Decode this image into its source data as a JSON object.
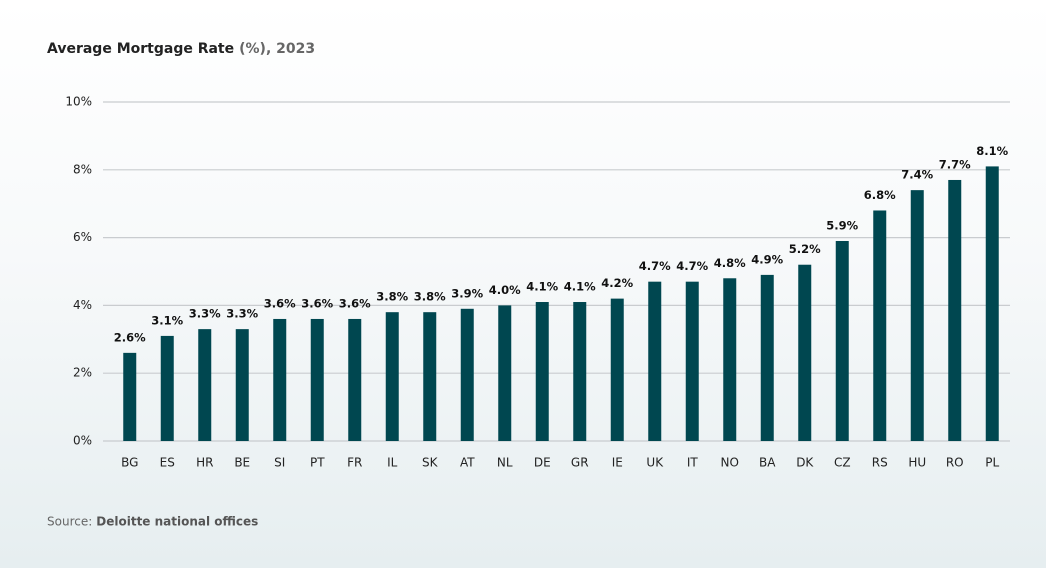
{
  "chart_data": {
    "type": "bar",
    "title": "Average Mortgage Rate",
    "title_note": "(%), 2023",
    "source_label": "Source:",
    "source": "Deloitte national offices",
    "categories": [
      "BG",
      "ES",
      "HR",
      "BE",
      "SI",
      "PT",
      "FR",
      "IL",
      "SK",
      "AT",
      "NL",
      "DE",
      "GR",
      "IE",
      "UK",
      "IT",
      "NO",
      "BA",
      "DK",
      "CZ",
      "RS",
      "HU",
      "RO",
      "PL"
    ],
    "values": [
      2.6,
      3.1,
      3.3,
      3.3,
      3.6,
      3.6,
      3.6,
      3.8,
      3.8,
      3.9,
      4.0,
      4.1,
      4.1,
      4.2,
      4.7,
      4.7,
      4.8,
      4.9,
      5.2,
      5.9,
      6.8,
      7.4,
      7.7,
      8.1
    ],
    "value_labels": [
      "2.6%",
      "3.1%",
      "3.3%",
      "3.3%",
      "3.6%",
      "3.6%",
      "3.6%",
      "3.8%",
      "3.8%",
      "3.9%",
      "4.0%",
      "4.1%",
      "4.1%",
      "4.2%",
      "4.7%",
      "4.7%",
      "4.8%",
      "4.9%",
      "5.2%",
      "5.9%",
      "6.8%",
      "7.4%",
      "7.7%",
      "8.1%"
    ],
    "color": "#004750",
    "ylim": [
      0,
      10
    ],
    "yticks": [
      {
        "value": 0,
        "label": "0%"
      },
      {
        "value": 2,
        "label": "2%"
      },
      {
        "value": 4,
        "label": "4%"
      },
      {
        "value": 6,
        "label": "6%"
      },
      {
        "value": 8,
        "label": "8%"
      },
      {
        "value": 10,
        "label": "10%"
      }
    ],
    "grid": true
  }
}
